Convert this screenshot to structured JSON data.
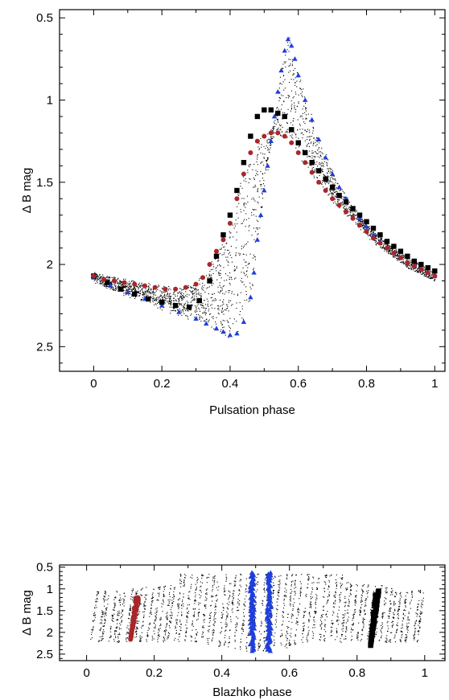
{
  "chart_data": [
    {
      "type": "scatter",
      "xlabel": "Pulsation phase",
      "ylabel": "Δ B mag",
      "xlim": [
        -0.1,
        1.03
      ],
      "ylim": [
        2.65,
        0.45
      ],
      "y_inverted": true,
      "xticks": [
        "0",
        "0.2",
        "0.4",
        "0.6",
        "0.8",
        "1"
      ],
      "xtick_values": [
        0,
        0.2,
        0.4,
        0.6,
        0.8,
        1
      ],
      "yticks": [
        "0.5",
        "1",
        "1.5",
        "2",
        "2.5"
      ],
      "ytick_values": [
        0.5,
        1,
        1.5,
        2,
        2.5
      ],
      "background_cloud": {
        "color": "#000000",
        "description_density": "dense small dots"
      },
      "series": [
        {
          "marker": "triangle",
          "color": "#1f3fd9",
          "x": [
            0.0,
            0.05,
            0.1,
            0.15,
            0.2,
            0.25,
            0.3,
            0.33,
            0.36,
            0.38,
            0.4,
            0.42,
            0.44,
            0.46,
            0.47,
            0.48,
            0.49,
            0.5,
            0.51,
            0.52,
            0.53,
            0.54,
            0.55,
            0.56,
            0.57,
            0.58,
            0.59,
            0.6,
            0.62,
            0.64,
            0.66,
            0.68,
            0.7,
            0.72,
            0.74,
            0.76,
            0.78,
            0.8,
            0.82,
            0.84,
            0.86,
            0.88,
            0.9,
            0.92,
            0.94,
            0.96,
            0.98,
            1.0
          ],
          "y": [
            2.08,
            2.13,
            2.17,
            2.21,
            2.25,
            2.29,
            2.33,
            2.36,
            2.39,
            2.41,
            2.43,
            2.42,
            2.35,
            2.2,
            2.05,
            1.85,
            1.7,
            1.55,
            1.4,
            1.25,
            1.1,
            0.95,
            0.82,
            0.7,
            0.63,
            0.67,
            0.75,
            0.85,
            1.0,
            1.12,
            1.24,
            1.35,
            1.45,
            1.53,
            1.6,
            1.66,
            1.72,
            1.77,
            1.82,
            1.86,
            1.9,
            1.93,
            1.96,
            1.99,
            2.01,
            2.03,
            2.05,
            2.07
          ]
        },
        {
          "marker": "square",
          "color": "#000000",
          "x": [
            0.0,
            0.04,
            0.08,
            0.12,
            0.16,
            0.2,
            0.24,
            0.28,
            0.31,
            0.34,
            0.36,
            0.38,
            0.4,
            0.42,
            0.44,
            0.46,
            0.48,
            0.5,
            0.52,
            0.54,
            0.56,
            0.58,
            0.6,
            0.62,
            0.64,
            0.66,
            0.68,
            0.7,
            0.72,
            0.74,
            0.76,
            0.78,
            0.8,
            0.82,
            0.84,
            0.86,
            0.88,
            0.9,
            0.92,
            0.94,
            0.96,
            0.98,
            1.0
          ],
          "y": [
            2.07,
            2.11,
            2.15,
            2.18,
            2.21,
            2.23,
            2.25,
            2.26,
            2.22,
            2.1,
            1.95,
            1.82,
            1.7,
            1.55,
            1.38,
            1.22,
            1.1,
            1.06,
            1.06,
            1.08,
            1.1,
            1.18,
            1.26,
            1.32,
            1.38,
            1.43,
            1.48,
            1.53,
            1.58,
            1.62,
            1.66,
            1.7,
            1.74,
            1.78,
            1.82,
            1.86,
            1.89,
            1.92,
            1.95,
            1.98,
            2.0,
            2.02,
            2.04
          ]
        },
        {
          "marker": "circle",
          "color": "#a8272a",
          "x": [
            0.0,
            0.03,
            0.06,
            0.09,
            0.12,
            0.15,
            0.18,
            0.21,
            0.24,
            0.27,
            0.3,
            0.32,
            0.34,
            0.36,
            0.38,
            0.4,
            0.42,
            0.44,
            0.46,
            0.48,
            0.5,
            0.52,
            0.54,
            0.56,
            0.58,
            0.6,
            0.62,
            0.64,
            0.66,
            0.68,
            0.7,
            0.72,
            0.74,
            0.76,
            0.78,
            0.8,
            0.82,
            0.84,
            0.86,
            0.88,
            0.9,
            0.92,
            0.94,
            0.96,
            0.98,
            1.0
          ],
          "y": [
            2.07,
            2.09,
            2.1,
            2.11,
            2.12,
            2.13,
            2.14,
            2.15,
            2.15,
            2.14,
            2.12,
            2.08,
            2.0,
            1.92,
            1.85,
            1.75,
            1.6,
            1.45,
            1.32,
            1.25,
            1.22,
            1.2,
            1.2,
            1.22,
            1.26,
            1.32,
            1.38,
            1.44,
            1.5,
            1.55,
            1.6,
            1.64,
            1.68,
            1.72,
            1.76,
            1.8,
            1.84,
            1.87,
            1.9,
            1.93,
            1.96,
            1.99,
            2.01,
            2.03,
            2.05,
            2.07
          ]
        }
      ]
    },
    {
      "type": "scatter",
      "xlabel": "Blazhko phase",
      "ylabel": "Δ B mag",
      "xlim": [
        -0.08,
        1.06
      ],
      "ylim": [
        2.65,
        0.45
      ],
      "y_inverted": true,
      "xticks": [
        "0",
        "0.2",
        "0.4",
        "0.6",
        "0.8",
        "1"
      ],
      "xtick_values": [
        0,
        0.2,
        0.4,
        0.6,
        0.8,
        1
      ],
      "yticks": [
        "0.5",
        "1",
        "1.5",
        "2",
        "2.5"
      ],
      "ytick_values": [
        0.5,
        1,
        1.5,
        2,
        2.5
      ],
      "background_cloud": {
        "color": "#000000",
        "description_density": "vertical streaks of small dots"
      },
      "series": [
        {
          "marker": "circle",
          "color": "#a8272a",
          "x_range": [
            0.13,
            0.155
          ],
          "y_range": [
            1.2,
            2.16
          ]
        },
        {
          "marker": "triangle",
          "color": "#1f3fd9",
          "x_groups": [
            0.49,
            0.54
          ],
          "y_range": [
            0.63,
            2.43
          ]
        },
        {
          "marker": "square",
          "color": "#000000",
          "x_range": [
            0.84,
            0.865
          ],
          "y_range": [
            1.05,
            2.3
          ]
        }
      ]
    }
  ]
}
